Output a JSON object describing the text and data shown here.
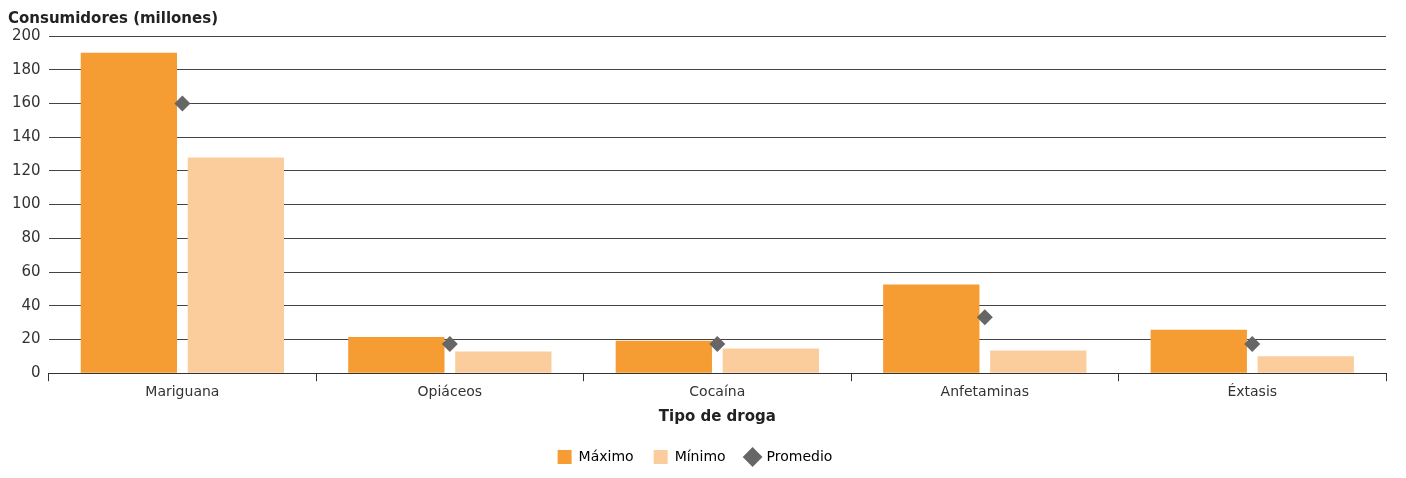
{
  "chart_data": {
    "type": "bar",
    "ylabel": "Consumidores (millones)",
    "xlabel": "Tipo de droga",
    "categories": [
      "Mariguana",
      "Opiáceos",
      "Cocaína",
      "Anfetaminas",
      "Éxtasis"
    ],
    "series": [
      {
        "name": "Máximo",
        "color": "#f59c33",
        "values": [
          190,
          21.5,
          19.2,
          52.6,
          25.7
        ]
      },
      {
        "name": "Mínimo",
        "color": "#fbcd9c",
        "values": [
          128,
          12.8,
          14.7,
          13.5,
          10.1
        ]
      },
      {
        "name": "Promedio",
        "type": "scatter",
        "marker": "diamond",
        "color": "#666666",
        "x": [
          "Mariguana",
          "Opiáceos",
          "Cocaína",
          "Anfetaminas",
          "Éxtasis"
        ],
        "values": [
          160,
          17.3,
          17.3,
          33.2,
          17.3
        ]
      }
    ],
    "ylim": [
      0,
      200
    ],
    "yticks": [
      0,
      20,
      40,
      60,
      80,
      100,
      120,
      140,
      160,
      180,
      200
    ],
    "grid": "y",
    "legend": "bottom"
  }
}
